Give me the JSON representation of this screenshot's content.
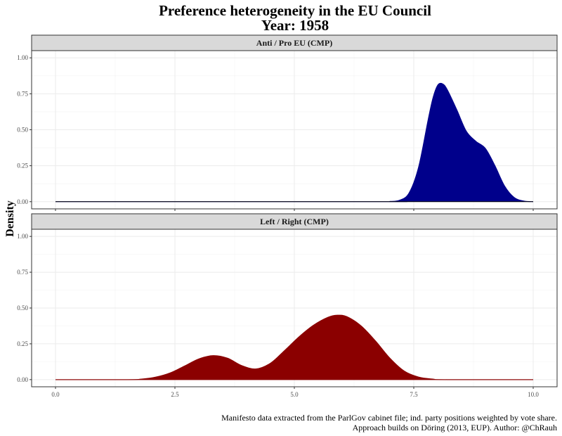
{
  "title": {
    "line1": "Preference heterogeneity in the EU Council",
    "line2": "Year: 1958"
  },
  "y_axis_title": "Density",
  "caption": {
    "line1": "Manifesto data extracted from the ParlGov cabinet file; ind. party positions weighted by vote share.",
    "line2": "Approach builds on Döring (2013, EUP). Author: @ChRauh"
  },
  "colors": {
    "panel1_fill": "#00008B",
    "panel2_fill": "#8B0000",
    "strip_bg": "#D9D9D9",
    "grid": "#EBEBEB"
  },
  "chart_data": [
    {
      "type": "area",
      "facet_label": "Anti / Pro EU (CMP)",
      "fill": "#00008B",
      "xlim": [
        -0.5,
        10.5
      ],
      "ylim": [
        -0.05,
        1.05
      ],
      "x_ticks": [
        0,
        2.5,
        5,
        7.5,
        10
      ],
      "x_tick_labels": [
        "0.0",
        "2.5",
        "5.0",
        "7.5",
        "10.0"
      ],
      "y_ticks": [
        0,
        0.25,
        0.5,
        0.75,
        1
      ],
      "y_tick_labels": [
        "0.00",
        "0.25",
        "0.50",
        "0.75",
        "1.00"
      ],
      "grid": true,
      "x": [
        0,
        6.8,
        7.0,
        7.2,
        7.4,
        7.6,
        7.8,
        7.9,
        8.0,
        8.1,
        8.2,
        8.4,
        8.6,
        8.8,
        9.0,
        9.2,
        9.4,
        9.6,
        9.8,
        10
      ],
      "y": [
        0,
        0,
        0.002,
        0.01,
        0.06,
        0.24,
        0.57,
        0.72,
        0.81,
        0.82,
        0.78,
        0.64,
        0.49,
        0.42,
        0.37,
        0.25,
        0.11,
        0.03,
        0.005,
        0
      ]
    },
    {
      "type": "area",
      "facet_label": "Left / Right (CMP)",
      "fill": "#8B0000",
      "xlim": [
        -0.5,
        10.5
      ],
      "ylim": [
        -0.05,
        1.05
      ],
      "x_ticks": [
        0,
        2.5,
        5,
        7.5,
        10
      ],
      "x_tick_labels": [
        "0.0",
        "2.5",
        "5.0",
        "7.5",
        "10.0"
      ],
      "y_ticks": [
        0,
        0.25,
        0.5,
        0.75,
        1
      ],
      "y_tick_labels": [
        "0.00",
        "0.25",
        "0.50",
        "0.75",
        "1.00"
      ],
      "grid": true,
      "x": [
        0,
        1.5,
        1.8,
        2.1,
        2.4,
        2.7,
        3.0,
        3.3,
        3.6,
        3.9,
        4.2,
        4.5,
        4.8,
        5.1,
        5.4,
        5.7,
        5.9,
        6.1,
        6.4,
        6.7,
        7.0,
        7.3,
        7.6,
        7.9,
        8.2,
        10
      ],
      "y": [
        0,
        0,
        0.004,
        0.018,
        0.047,
        0.095,
        0.145,
        0.168,
        0.15,
        0.098,
        0.075,
        0.115,
        0.205,
        0.3,
        0.38,
        0.435,
        0.45,
        0.44,
        0.375,
        0.27,
        0.15,
        0.06,
        0.018,
        0.004,
        0,
        0
      ]
    }
  ]
}
